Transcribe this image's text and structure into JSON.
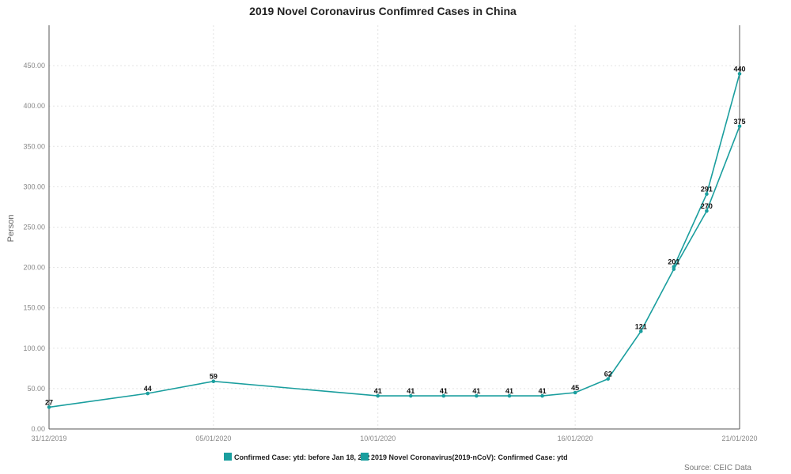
{
  "chart_data": {
    "type": "line",
    "title": "2019 Novel Coronavirus Confimred Cases in China",
    "ylabel": "Person",
    "xlabel": "",
    "ylim": [
      0,
      500
    ],
    "yticks": [
      "0.00",
      "50.00",
      "100.00",
      "150.00",
      "200.00",
      "250.00",
      "300.00",
      "350.00",
      "400.00",
      "450.00"
    ],
    "ytick_values": [
      0,
      50,
      100,
      150,
      200,
      250,
      300,
      350,
      400,
      450
    ],
    "xlim": [
      "2019-12-31",
      "2020-01-21"
    ],
    "xticks": [
      "31/12/2019",
      "05/01/2020",
      "10/01/2020",
      "16/01/2020",
      "21/01/2020"
    ],
    "xtick_dates": [
      "2019-12-31",
      "2020-01-05",
      "2020-01-10",
      "2020-01-16",
      "2020-01-21"
    ],
    "grid": true,
    "legend_position": "bottom",
    "series": [
      {
        "name": "Confirmed Case: ytd: before Jan 18, 202",
        "color": "#1a9e9e",
        "points": [
          {
            "x": "2019-12-31",
            "y": 27
          },
          {
            "x": "2020-01-03",
            "y": 44
          },
          {
            "x": "2020-01-05",
            "y": 59
          },
          {
            "x": "2020-01-10",
            "y": 41
          },
          {
            "x": "2020-01-11",
            "y": 41
          },
          {
            "x": "2020-01-12",
            "y": 41
          },
          {
            "x": "2020-01-13",
            "y": 41
          },
          {
            "x": "2020-01-14",
            "y": 41
          },
          {
            "x": "2020-01-15",
            "y": 41
          },
          {
            "x": "2020-01-16",
            "y": 45
          },
          {
            "x": "2020-01-17",
            "y": 62
          },
          {
            "x": "2020-01-18",
            "y": 121
          },
          {
            "x": "2020-01-19",
            "y": 198
          },
          {
            "x": "2020-01-20",
            "y": 270
          },
          {
            "x": "2020-01-21",
            "y": 375
          }
        ]
      },
      {
        "name": "2019 Novel Coronavirus(2019-nCoV): Confirmed Case: ytd",
        "color": "#1a9e9e",
        "points": [
          {
            "x": "2020-01-19",
            "y": 201
          },
          {
            "x": "2020-01-20",
            "y": 291
          },
          {
            "x": "2020-01-21",
            "y": 440
          }
        ]
      }
    ],
    "data_labels": [
      {
        "x": "2019-12-31",
        "y": 27,
        "text": "27"
      },
      {
        "x": "2020-01-03",
        "y": 44,
        "text": "44"
      },
      {
        "x": "2020-01-05",
        "y": 59,
        "text": "59"
      },
      {
        "x": "2020-01-10",
        "y": 41,
        "text": "41"
      },
      {
        "x": "2020-01-11",
        "y": 41,
        "text": "41"
      },
      {
        "x": "2020-01-12",
        "y": 41,
        "text": "41"
      },
      {
        "x": "2020-01-13",
        "y": 41,
        "text": "41"
      },
      {
        "x": "2020-01-14",
        "y": 41,
        "text": "41"
      },
      {
        "x": "2020-01-15",
        "y": 41,
        "text": "41"
      },
      {
        "x": "2020-01-16",
        "y": 45,
        "text": "45"
      },
      {
        "x": "2020-01-17",
        "y": 62,
        "text": "62"
      },
      {
        "x": "2020-01-18",
        "y": 121,
        "text": "121"
      },
      {
        "x": "2020-01-19",
        "y": 201,
        "text": "201"
      },
      {
        "x": "2020-01-20",
        "y": 291,
        "text": "291"
      },
      {
        "x": "2020-01-20",
        "y": 270,
        "text": "270"
      },
      {
        "x": "2020-01-21",
        "y": 440,
        "text": "440"
      },
      {
        "x": "2020-01-21",
        "y": 375,
        "text": "375"
      }
    ],
    "legend": [
      {
        "label": "Confirmed Case: ytd: before Jan 18, 202",
        "color": "#1a9e9e"
      },
      {
        "label": "2019 Novel Coronavirus(2019-nCoV): Confirmed Case: ytd",
        "color": "#1a9e9e"
      }
    ],
    "source": "Source: CEIC Data"
  }
}
